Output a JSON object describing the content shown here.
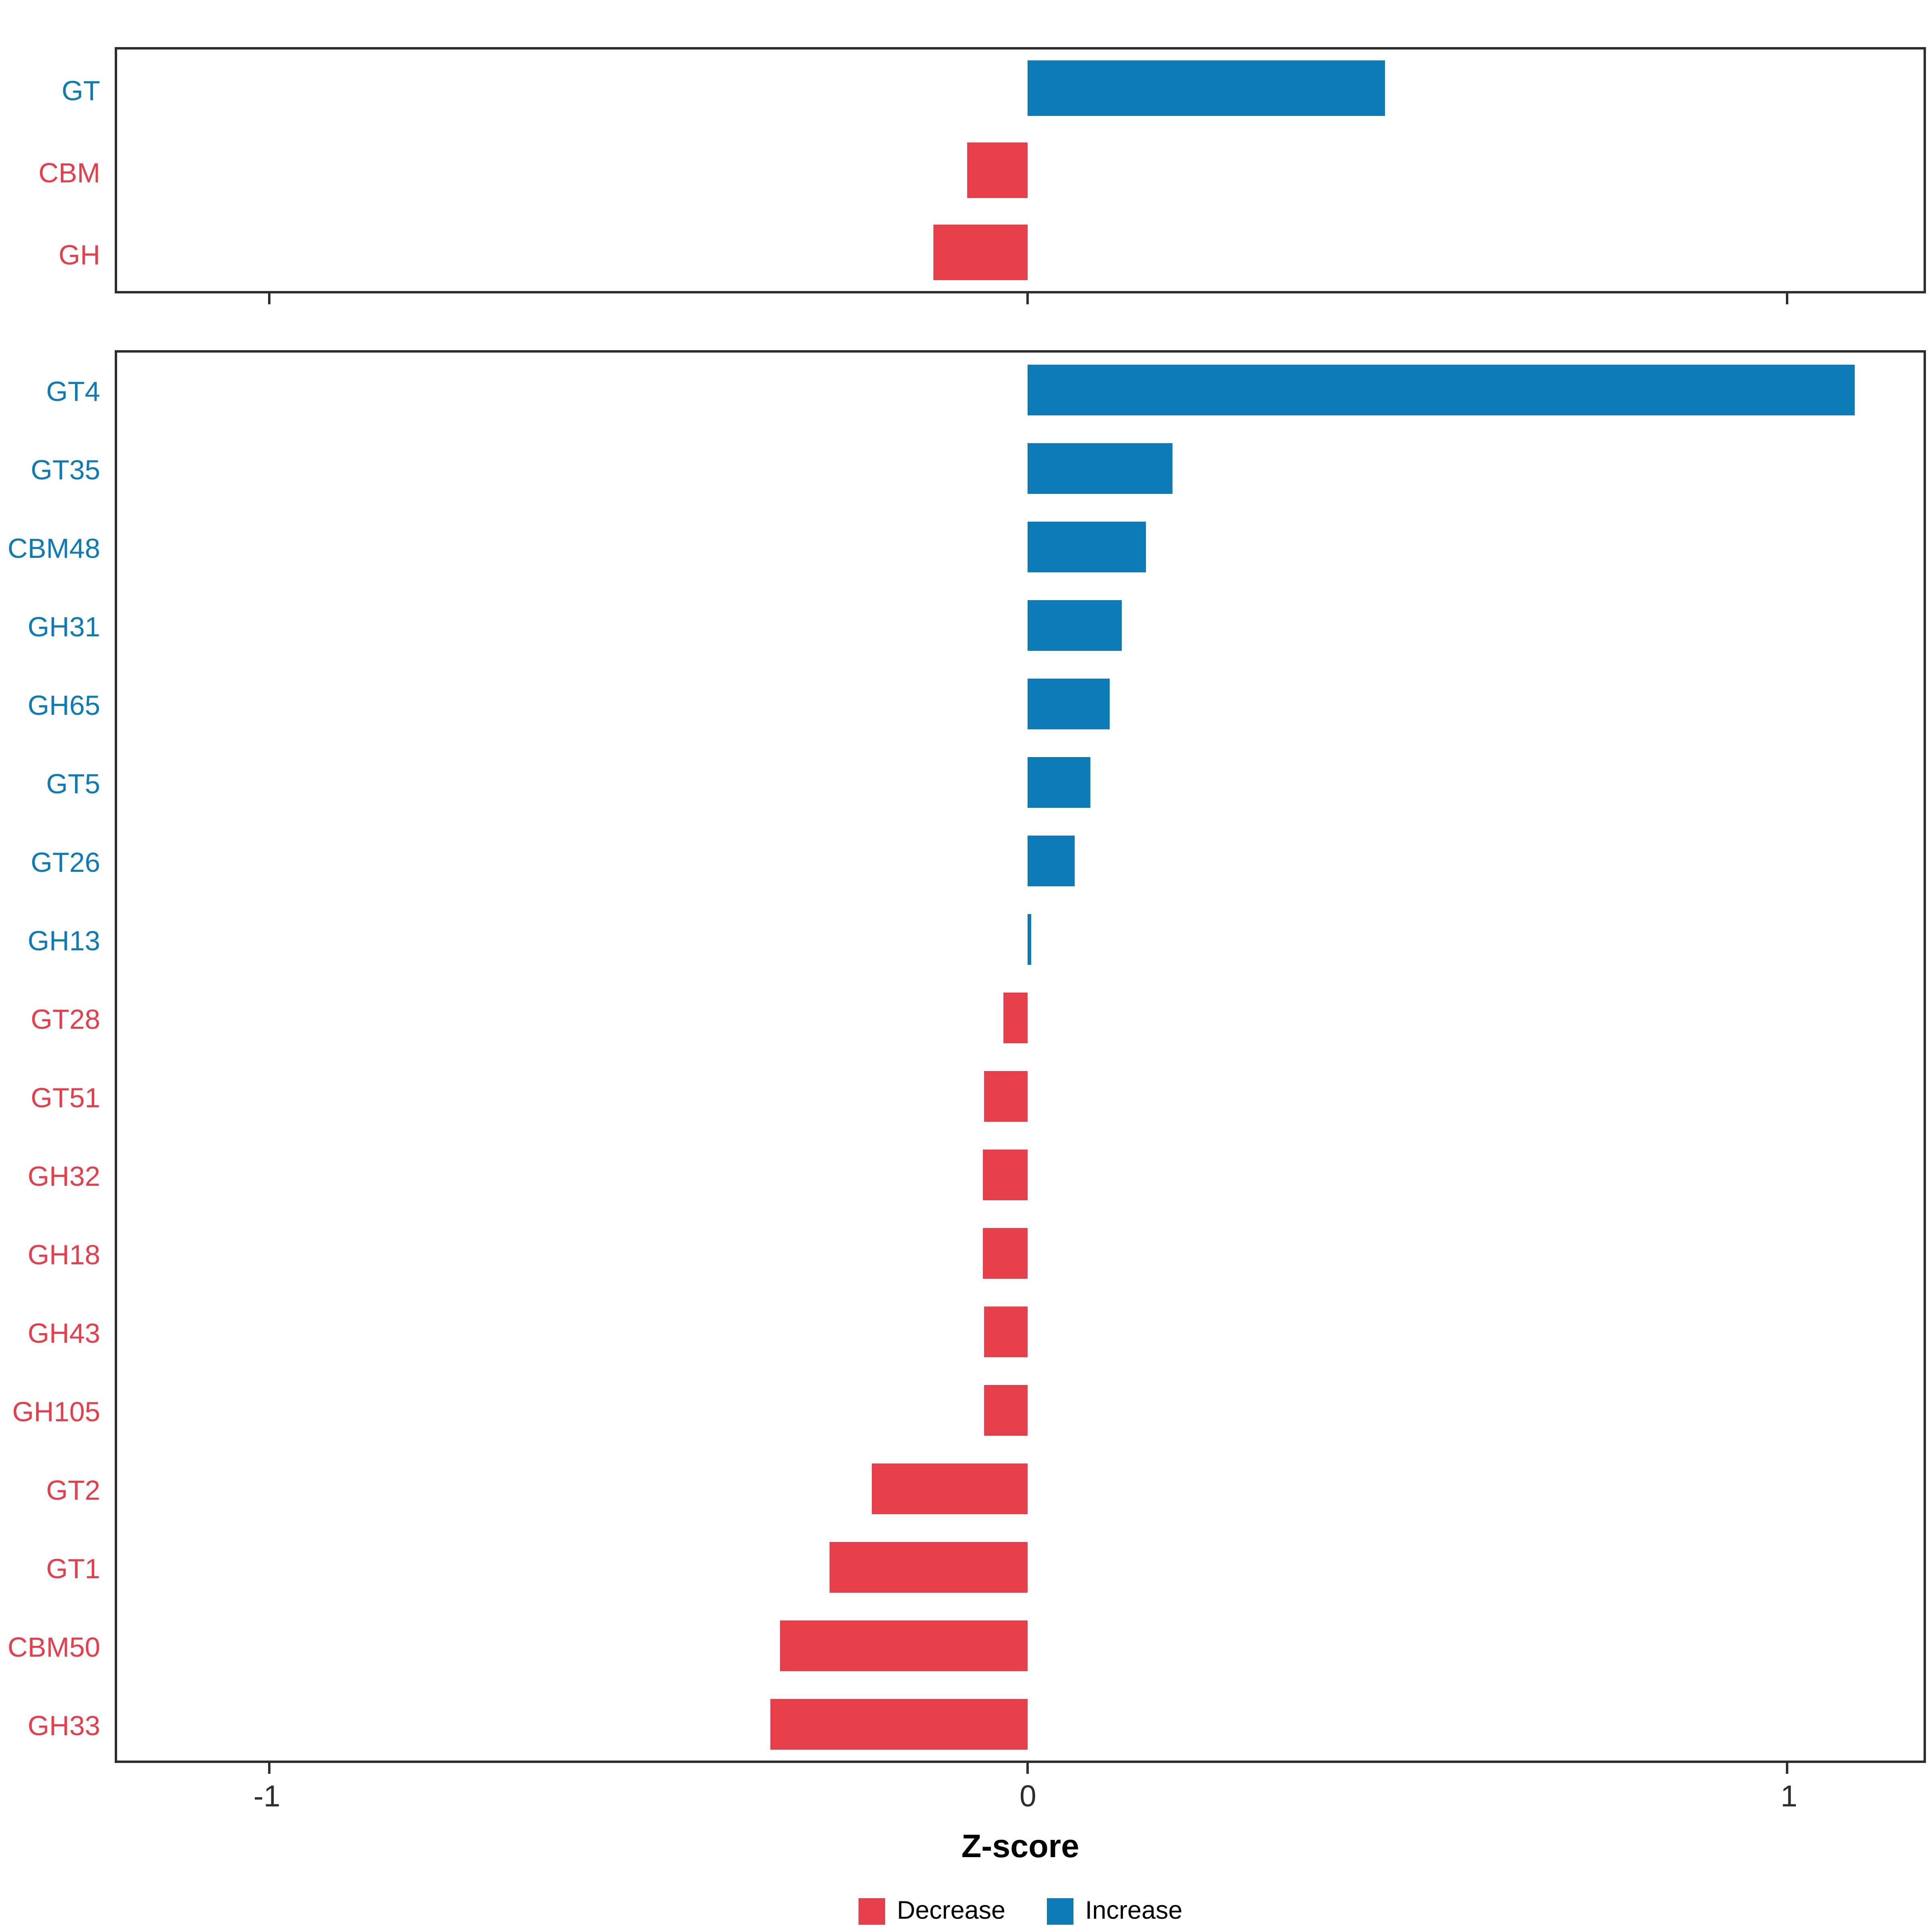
{
  "figure": {
    "xlabel": "Z-score",
    "axis_ticks": [
      {
        "label": "-1",
        "value": -1
      },
      {
        "label": "0",
        "value": 0
      },
      {
        "label": "1",
        "value": 1
      }
    ],
    "legend": [
      {
        "label": "Decrease",
        "key": "decrease"
      },
      {
        "label": "Increase",
        "key": "increase"
      }
    ]
  },
  "colors": {
    "increase": "#0C7BB8",
    "decrease": "#E73E4B",
    "axis": "#2e2e2e"
  },
  "chart_data": [
    {
      "type": "bar",
      "orientation": "horizontal",
      "panel": "top",
      "categories": [
        "GT",
        "CBM",
        "GH"
      ],
      "values": [
        0.47,
        -0.08,
        -0.125
      ],
      "xlim": [
        -1.2,
        1.18
      ],
      "xlabel": "Z-score",
      "grid": false,
      "legend_position": "bottom"
    },
    {
      "type": "bar",
      "orientation": "horizontal",
      "panel": "bottom",
      "categories": [
        "GT4",
        "GT35",
        "CBM48",
        "GH31",
        "GH65",
        "GT5",
        "GT26",
        "GH13",
        "GT28",
        "GT51",
        "GH32",
        "GH18",
        "GH43",
        "GH105",
        "GT2",
        "GT1",
        "CBM50",
        "GH33"
      ],
      "values": [
        1.09,
        0.19,
        0.155,
        0.123,
        0.108,
        0.082,
        0.062,
        0.005,
        -0.033,
        -0.058,
        -0.06,
        -0.06,
        -0.058,
        -0.058,
        -0.205,
        -0.262,
        -0.327,
        -0.34
      ],
      "xlim": [
        -1.2,
        1.18
      ],
      "xlabel": "Z-score",
      "grid": false,
      "legend_position": "bottom"
    }
  ]
}
